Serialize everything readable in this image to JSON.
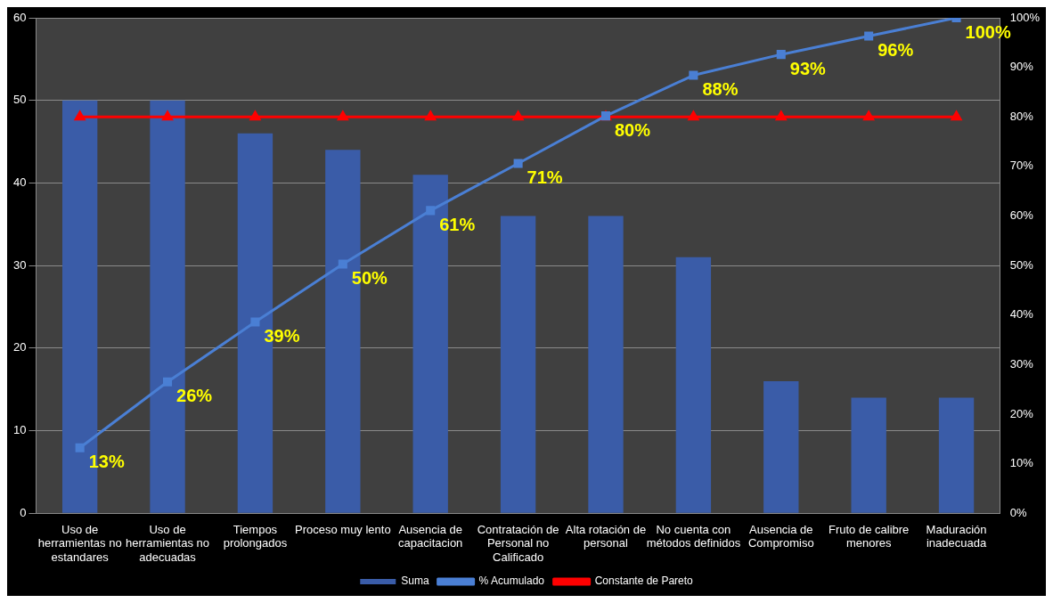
{
  "chart_data": {
    "type": "bar",
    "categories": [
      "Uso de herramientas no estandares",
      "Uso de herramientas no adecuadas",
      "Tiempos prolongados",
      "Proceso muy lento",
      "Ausencia de capacitacion",
      "Contratación de Personal no Calificado",
      "Alta rotación de personal",
      "No cuenta con métodos definidos",
      "Ausencia de Compromiso",
      "Fruto de calibre menores",
      "Maduración inadecuada"
    ],
    "series": [
      {
        "name": "Suma",
        "color": "#3a5ca8",
        "values": [
          50,
          50,
          46,
          44,
          41,
          36,
          36,
          31,
          16,
          14,
          14
        ]
      },
      {
        "name": "% Acumulado",
        "type": "line",
        "axis": "y2",
        "color": "#4a7fd4",
        "marker": "square",
        "values": [
          13.2,
          26.5,
          38.6,
          50.3,
          61.1,
          70.6,
          80.2,
          88.4,
          92.6,
          96.3,
          100
        ],
        "value_labels": [
          "13%",
          "26%",
          "39%",
          "50%",
          "61%",
          "71%",
          "80%",
          "88%",
          "93%",
          "96%",
          "100%"
        ]
      },
      {
        "name": "Constante de Pareto",
        "type": "line",
        "axis": "y2",
        "color": "#ff0000",
        "marker": "triangle",
        "values": [
          80,
          80,
          80,
          80,
          80,
          80,
          80,
          80,
          80,
          80,
          80
        ]
      }
    ],
    "ylim": [
      0,
      60
    ],
    "yticks": [
      0,
      10,
      20,
      30,
      40,
      50,
      60
    ],
    "y2lim": [
      0,
      100
    ],
    "y2ticks": [
      {
        "value": 0,
        "label": "0%"
      },
      {
        "value": 10,
        "label": "10%"
      },
      {
        "value": 20,
        "label": "20%"
      },
      {
        "value": 30,
        "label": "30%"
      },
      {
        "value": 40,
        "label": "40%"
      },
      {
        "value": 50,
        "label": "50%"
      },
      {
        "value": 60,
        "label": "60%"
      },
      {
        "value": 70,
        "label": "70%"
      },
      {
        "value": 80,
        "label": "80%"
      },
      {
        "value": 90,
        "label": "90%"
      },
      {
        "value": 100,
        "label": "100%"
      }
    ],
    "grid": "y",
    "legend": "bottom"
  }
}
